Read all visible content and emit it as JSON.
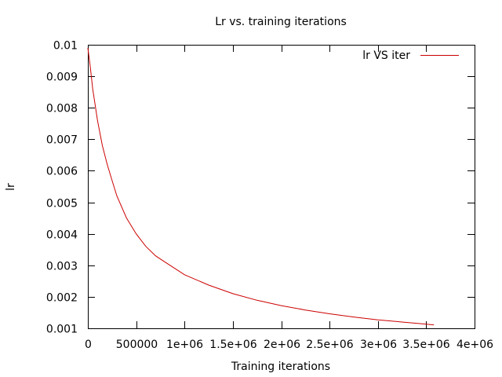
{
  "chart_data": {
    "type": "line",
    "title": "Lr vs. training iterations",
    "xlabel": "Training iterations",
    "ylabel": "lr",
    "xlim": [
      0,
      4000000
    ],
    "ylim": [
      0.001,
      0.01
    ],
    "x_tick_values": [
      0,
      500000,
      1000000,
      1500000,
      2000000,
      2500000,
      3000000,
      3500000,
      4000000
    ],
    "x_tick_labels": [
      "0",
      "500000",
      "1e+06",
      "1.5e+06",
      "2e+06",
      "2.5e+06",
      "3e+06",
      "3.5e+06",
      "4e+06"
    ],
    "y_tick_values": [
      0.001,
      0.002,
      0.003,
      0.004,
      0.005,
      0.006,
      0.007,
      0.008,
      0.009,
      0.01
    ],
    "y_tick_labels": [
      "0.001",
      "0.002",
      "0.003",
      "0.004",
      "0.005",
      "0.006",
      "0.007",
      "0.008",
      "0.009",
      "0.01"
    ],
    "grid": false,
    "legend_position": "top-right",
    "series": [
      {
        "name": "lr VS iter",
        "color": "#cc0000",
        "x": [
          0,
          25000,
          50000,
          100000,
          150000,
          200000,
          250000,
          300000,
          400000,
          500000,
          600000,
          700000,
          800000,
          1000000,
          1250000,
          1500000,
          1750000,
          2000000,
          2250000,
          2500000,
          2750000,
          3000000,
          3250000,
          3500000,
          3580000
        ],
        "y": [
          0.0099,
          0.0093,
          0.0086,
          0.0076,
          0.0068,
          0.0062,
          0.0057,
          0.0052,
          0.0045,
          0.004,
          0.0036,
          0.0033,
          0.0031,
          0.0027,
          0.00237,
          0.0021,
          0.00189,
          0.00172,
          0.00158,
          0.00146,
          0.00136,
          0.00127,
          0.0012,
          0.00113,
          0.00111
        ]
      }
    ]
  }
}
